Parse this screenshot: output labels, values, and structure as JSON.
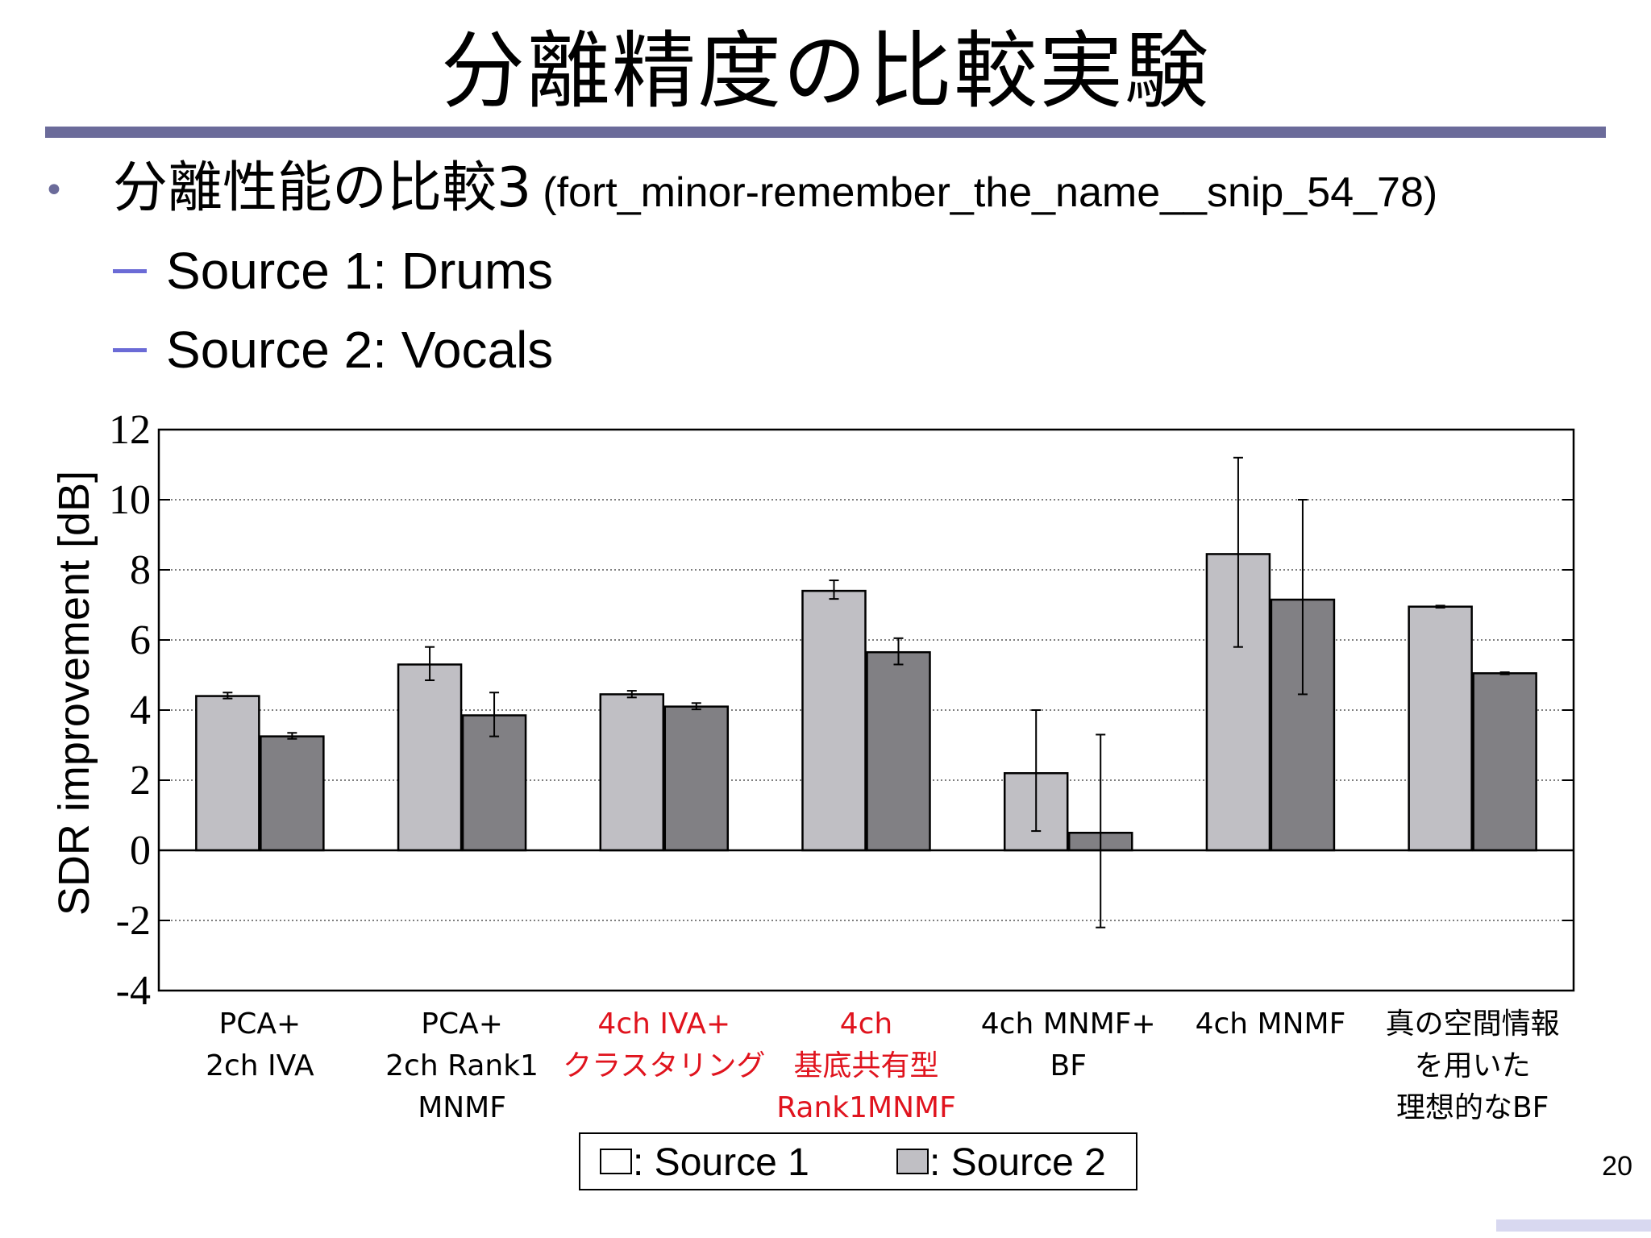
{
  "slide": {
    "title": "分離精度の比較実験",
    "bullet": {
      "main": "分離性能の比較3",
      "note": "(fort_minor-remember_the_name__snip_54_78)"
    },
    "sub_items": [
      "Source 1: Drums",
      "Source 2: Vocals"
    ],
    "page_number": "20",
    "bullet_glyph": "•",
    "colors": {
      "accent_bar": "#6b6b9a",
      "bullet": "#6b6b9a",
      "dash": "#6b6bd6",
      "highlight_label": "#e0141e",
      "corner_bar": "#d8d8f0"
    }
  },
  "chart_data": {
    "type": "bar",
    "ylabel": "SDR improvement [dB]",
    "ylim": [
      -4,
      12
    ],
    "yticks": [
      -4,
      -2,
      0,
      2,
      4,
      6,
      8,
      10,
      12
    ],
    "yticks_text": [
      "-4",
      "-2",
      "0",
      "2",
      "4",
      "6",
      "8",
      "10",
      "12"
    ],
    "grid": "horizontal-dotted",
    "categories": [
      {
        "lines": [
          "PCA+",
          "2ch IVA"
        ],
        "highlight": false
      },
      {
        "lines": [
          "PCA+",
          "2ch Rank1",
          "MNMF"
        ],
        "highlight": false
      },
      {
        "lines": [
          "4ch IVA+",
          "クラスタリング"
        ],
        "highlight": true
      },
      {
        "lines": [
          "4ch",
          "基底共有型",
          "Rank1MNMF"
        ],
        "highlight": true
      },
      {
        "lines": [
          "4ch MNMF+",
          "BF"
        ],
        "highlight": false
      },
      {
        "lines": [
          "4ch MNMF"
        ],
        "highlight": false
      },
      {
        "lines": [
          "真の空間情報",
          "を用いた",
          "理想的なBF"
        ],
        "highlight": false
      }
    ],
    "series": [
      {
        "legend": ": Source 1",
        "color": "#c0bfc4",
        "legend_swatch_color": "#ffffff",
        "values": [
          4.4,
          5.3,
          4.45,
          7.4,
          2.2,
          8.45,
          6.95
        ],
        "err_low": [
          4.33,
          4.85,
          4.36,
          7.17,
          0.55,
          5.8,
          6.92
        ],
        "err_high": [
          4.5,
          5.8,
          4.55,
          7.7,
          4.0,
          11.2,
          6.98
        ]
      },
      {
        "legend": ": Source 2",
        "color": "#818084",
        "legend_swatch_color": "#c0bfc4",
        "values": [
          3.25,
          3.85,
          4.1,
          5.65,
          0.5,
          7.15,
          5.05
        ],
        "err_low": [
          3.18,
          3.25,
          4.02,
          5.3,
          -2.2,
          4.45,
          5.02
        ],
        "err_high": [
          3.35,
          4.5,
          4.2,
          6.05,
          3.3,
          10.0,
          5.08
        ]
      }
    ],
    "legend_position": "bottom-center"
  }
}
